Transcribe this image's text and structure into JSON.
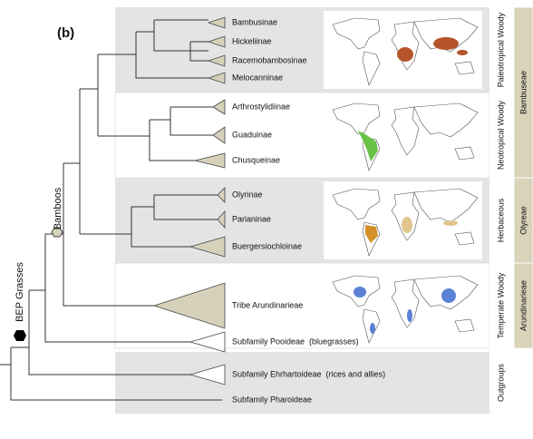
{
  "figure_label": "(b)",
  "clades": [
    {
      "label": "Bambusinae"
    },
    {
      "label": "Hickeliinae"
    },
    {
      "label": "Racemobambosinae"
    },
    {
      "label": "Melocanninae"
    },
    {
      "label": "Arthrostylidiinae"
    },
    {
      "label": "Guaduinae"
    },
    {
      "label": "Chusqueinae"
    },
    {
      "label": "Olyrinae"
    },
    {
      "label": "Parianinae"
    },
    {
      "label": "Buergersiochloinae"
    },
    {
      "label": "Tribe Arundinarieae"
    },
    {
      "label": "Subfamily Pooideae  (bluegrasses)"
    },
    {
      "label": "Subfamily Ehrhartoideae  (rices and allies)"
    },
    {
      "label": "Subfamily Pharoideae"
    }
  ],
  "groups": [
    {
      "label": "Paleotropical Woody"
    },
    {
      "label": "Neotropical Woody"
    },
    {
      "label": "Herbaceous"
    },
    {
      "label": "Temperate Woody"
    },
    {
      "label": "Outgroups"
    }
  ],
  "tribes": [
    {
      "label": "Bambuseae"
    },
    {
      "label": "Olyreae"
    },
    {
      "label": "Arundinarieae"
    }
  ],
  "nodes": {
    "bamboos": "Bamboos",
    "bep": "BEP Grasses"
  }
}
